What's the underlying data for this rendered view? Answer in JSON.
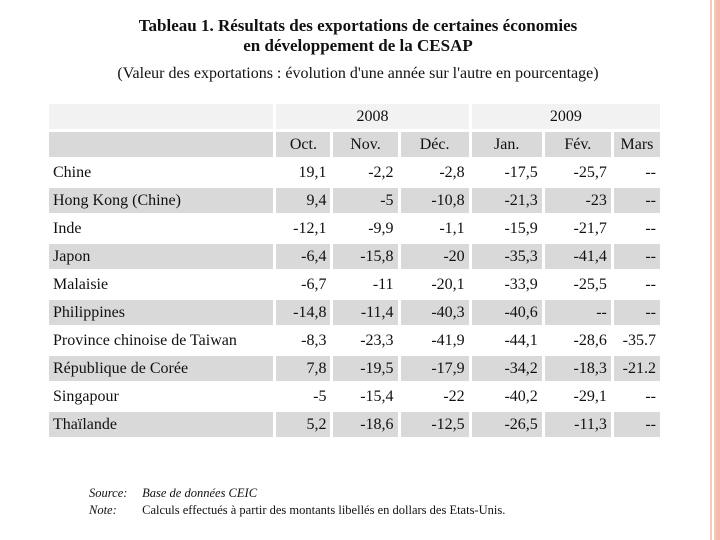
{
  "title": {
    "line1": "Tableau 1. Résultats des exportations de certaines économies",
    "line2": "en développement de la CESAP"
  },
  "subtitle": "(Valeur des exportations : évolution d'une année sur l'autre en pourcentage)",
  "table": {
    "years": [
      "2008",
      "2009"
    ],
    "months": [
      "Oct.",
      "Nov.",
      "Déc.",
      "Jan.",
      "Fév.",
      "Mars"
    ],
    "rows": [
      {
        "name": "Chine",
        "values": [
          "19,1",
          "-2,2",
          "-2,8",
          "-17,5",
          "-25,7",
          "--"
        ]
      },
      {
        "name": "Hong Kong (Chine)",
        "values": [
          "9,4",
          "-5",
          "-10,8",
          "-21,3",
          "-23",
          "--"
        ]
      },
      {
        "name": "Inde",
        "values": [
          "-12,1",
          "-9,9",
          "-1,1",
          "-15,9",
          "-21,7",
          "--"
        ]
      },
      {
        "name": "Japon",
        "values": [
          "-6,4",
          "-15,8",
          "-20",
          "-35,3",
          "-41,4",
          "--"
        ]
      },
      {
        "name": "Malaisie",
        "values": [
          "-6,7",
          "-11",
          "-20,1",
          "-33,9",
          "-25,5",
          "--"
        ]
      },
      {
        "name": "Philippines",
        "values": [
          "-14,8",
          "-11,4",
          "-40,3",
          "-40,6",
          "--",
          "--"
        ]
      },
      {
        "name": "Province chinoise de Taiwan",
        "values": [
          "-8,3",
          "-23,3",
          "-41,9",
          "-44,1",
          "-28,6",
          "-35.7"
        ]
      },
      {
        "name": "République de Corée",
        "values": [
          "7,8",
          "-19,5",
          "-17,9",
          "-34,2",
          "-18,3",
          "-21.2"
        ]
      },
      {
        "name": "Singapour",
        "values": [
          "-5",
          "-15,4",
          "-22",
          "-40,2",
          "-29,1",
          "--"
        ]
      },
      {
        "name": "Thaïlande",
        "values": [
          "5,2",
          "-18,6",
          "-12,5",
          "-26,5",
          "-11,3",
          "--"
        ]
      }
    ]
  },
  "footer": {
    "source_label": "Source:",
    "source_text": "Base de données CEIC",
    "note_label": "Note:",
    "note_text": "Calculs effectués à partir des montants libellés en dollars des Etats-Unis."
  },
  "colors": {
    "shade": "#d9d9d9",
    "light": "#f2f2f2",
    "accent": "#f4b9a8"
  }
}
